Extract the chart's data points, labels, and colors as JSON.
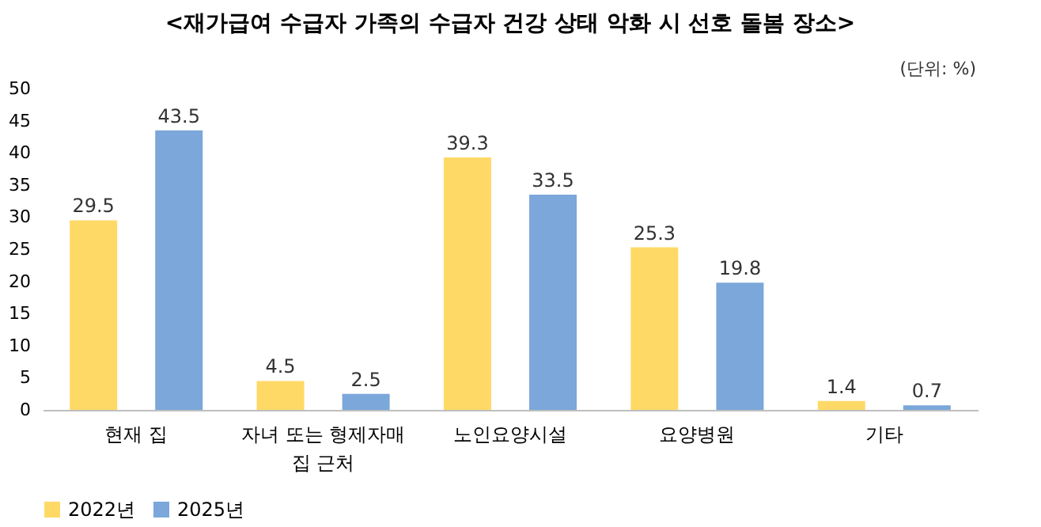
{
  "chart_data": {
    "type": "bar",
    "title": "<재가급여 수급자 가족의 수급자 건강 상태 악화 시 선호 돌봄 장소>",
    "annotations": [
      "(단위: %)"
    ],
    "categories": [
      "현재 집",
      "자녀 또는 형제자매 집 근처",
      "노인요양시설",
      "요양병원",
      "기타"
    ],
    "series": [
      {
        "name": "2022년",
        "color": "#ffd966",
        "values": [
          29.5,
          4.5,
          39.3,
          25.3,
          1.4
        ]
      },
      {
        "name": "2025년",
        "color": "#7ba7da",
        "values": [
          43.5,
          2.5,
          33.5,
          19.8,
          0.7
        ]
      }
    ],
    "ylim": [
      0,
      50
    ],
    "yticks": [
      0,
      5,
      10,
      15,
      20,
      25,
      30,
      35,
      40,
      45,
      50
    ],
    "grid": false,
    "legend": "bottom",
    "data_labels": true
  }
}
